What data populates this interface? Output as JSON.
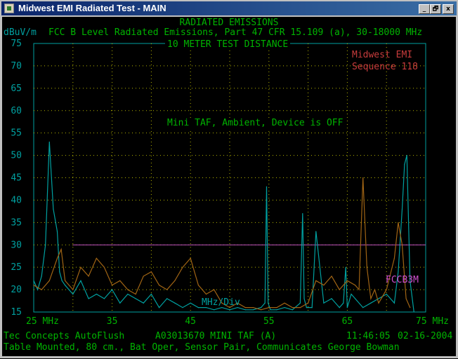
{
  "window": {
    "title": "Midwest EMI Radiated Test - MAIN",
    "buttons": {
      "minimize": "_",
      "restore": "🗗",
      "close": "x"
    }
  },
  "chart_header": {
    "line1": "RADIATED EMISSIONS",
    "line2": "FCC B Level Radiated Emissions, Part 47 CFR 15.109 (a), 30-18000 MHz",
    "line3": "10 METER TEST DISTANCE",
    "yunit": "dBuV/m"
  },
  "annotations": {
    "company": "Midwest EMI",
    "sequence": "Sequence 118",
    "note": "Mini TAF, Ambient, Device is OFF",
    "limit_label": "FCCB3M",
    "div_label": "MHz/Div"
  },
  "footer": {
    "left": "Tec Concepts AutoFlush",
    "center": "A03013670 MINI TAF (A)",
    "time": "11:46:05",
    "date": "02-16-2004",
    "line2": "Table Mounted, 80 cm., Bat Oper, Sensor Pair, Communicates George Bowman"
  },
  "colors": {
    "background": "#000000",
    "axis_text": "#00a0a0",
    "header_text": "#00b400",
    "grid": "#b4b400",
    "limit_line": "#c050c0",
    "trace_horizontal": "#00a0a0",
    "trace_vertical": "#a06414"
  },
  "chart_data": {
    "type": "line",
    "title": "RADIATED EMISSIONS",
    "ylabel": "dBuV/m",
    "xlim": [
      25,
      75
    ],
    "ylim": [
      15,
      75
    ],
    "x_ticks": [
      "25 MHz",
      "35",
      "45",
      "55",
      "65",
      "75 MHz"
    ],
    "x_tick_values": [
      25,
      35,
      45,
      55,
      65,
      75
    ],
    "y_ticks": [
      15,
      20,
      25,
      30,
      35,
      40,
      45,
      50,
      55,
      60,
      65,
      70,
      75
    ],
    "grid": true,
    "limit": {
      "name": "FCCB3M",
      "y": 30,
      "x_start": 30,
      "x_end": 75
    },
    "series": [
      {
        "x": [
          25,
          25.5,
          26,
          26.5,
          27,
          27.5,
          28,
          28.3,
          28.6,
          29,
          29.5,
          30,
          31,
          32,
          33,
          34,
          35,
          36,
          37,
          38,
          39,
          40,
          41,
          42,
          43,
          44,
          45,
          46,
          47,
          48,
          49,
          50,
          51,
          52,
          53,
          54,
          54.5,
          54.7,
          54.9,
          55.2,
          56,
          57,
          58,
          59,
          59.3,
          59.5,
          59.8,
          60.5,
          61,
          62,
          63,
          64,
          64.5,
          64.8,
          65,
          65.5,
          66,
          67,
          68,
          69,
          70,
          71,
          71.5,
          72,
          72.3,
          72.6,
          73,
          73.5
        ],
        "y": [
          22,
          20,
          23,
          30,
          53,
          38,
          33,
          24,
          22,
          21,
          20,
          19,
          22,
          18,
          19,
          18,
          20,
          17,
          19,
          18,
          17,
          19,
          16,
          18,
          17,
          16,
          17,
          16,
          16,
          15.5,
          16,
          15.5,
          16,
          15.5,
          15.5,
          16,
          17,
          43,
          17,
          15.5,
          15.5,
          16,
          15.5,
          17,
          37,
          18,
          16,
          16,
          33,
          17,
          18,
          16,
          17,
          25,
          16,
          19,
          18,
          16,
          17,
          18,
          19,
          17,
          24,
          38,
          48,
          50,
          22,
          15
        ]
      },
      {
        "x": [
          25,
          26,
          27,
          28,
          28.5,
          29,
          30,
          31,
          32,
          33,
          34,
          35,
          36,
          37,
          38,
          39,
          40,
          41,
          42,
          43,
          44,
          45,
          46,
          47,
          48,
          49,
          50,
          51,
          52,
          53,
          54,
          55,
          56,
          57,
          58,
          59,
          60,
          61,
          62,
          63,
          64,
          65,
          66,
          66.5,
          67,
          67.5,
          68,
          68.5,
          69,
          70,
          71,
          71.5,
          72,
          72.5,
          73
        ],
        "y": [
          21,
          20,
          22,
          27,
          29,
          22,
          20,
          25,
          23,
          27,
          25,
          21,
          22,
          20,
          19,
          23,
          24,
          21,
          20,
          22,
          25,
          27,
          21,
          19,
          20,
          17,
          16,
          17,
          16,
          16,
          15.5,
          16,
          16,
          17,
          16,
          16,
          17,
          22,
          21,
          23,
          20,
          22,
          21,
          20,
          45,
          25,
          18,
          20,
          17,
          20,
          27,
          35,
          30,
          18,
          16
        ]
      }
    ]
  }
}
